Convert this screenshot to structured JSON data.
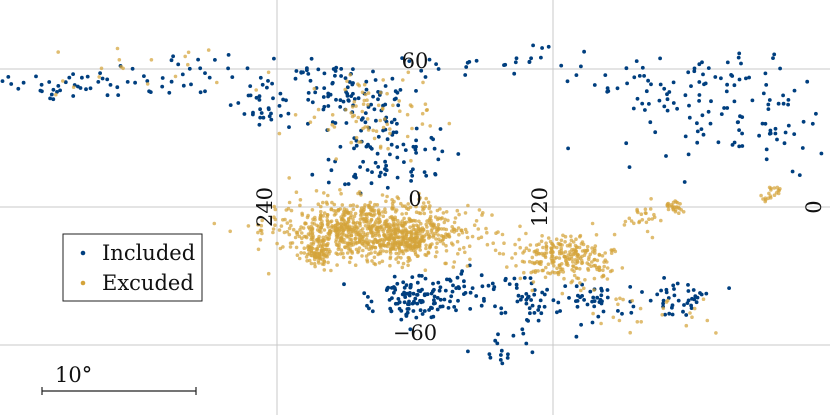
{
  "chart_data": {
    "type": "scatter",
    "projection": "sky map (longitude / latitude, degrees)",
    "grid": true,
    "longitude_ticks": [
      "240",
      "120",
      "0"
    ],
    "latitude_ticks": [
      "60",
      "0",
      "−60"
    ],
    "legend": {
      "placement": "left",
      "entries": [
        {
          "label": "Included",
          "color": "#003f7f"
        },
        {
          "label": "Excuded",
          "color": "#d4a33a"
        }
      ]
    },
    "scale_bar": {
      "label": "10°"
    },
    "series": [
      {
        "name": "Included",
        "color": "#003f7f",
        "clusters": [
          {
            "lon": 330,
            "lat": 53,
            "dlon": 40,
            "dlat": 6,
            "n": 45
          },
          {
            "lon": 265,
            "lat": 58,
            "dlon": 50,
            "dlat": 8,
            "n": 40
          },
          {
            "lon": 245,
            "lat": 43,
            "dlon": 14,
            "dlat": 10,
            "n": 30
          },
          {
            "lon": 208,
            "lat": 48,
            "dlon": 22,
            "dlat": 14,
            "n": 85
          },
          {
            "lon": 188,
            "lat": 28,
            "dlon": 18,
            "dlat": 10,
            "n": 45
          },
          {
            "lon": 196,
            "lat": 15,
            "dlon": 20,
            "dlat": 8,
            "n": 35
          },
          {
            "lon": 168,
            "lat": 63,
            "dlon": 25,
            "dlat": 6,
            "n": 14
          },
          {
            "lon": 125,
            "lat": 63,
            "dlon": 25,
            "dlat": 6,
            "n": 12
          },
          {
            "lon": 60,
            "lat": 57,
            "dlon": 40,
            "dlat": 9,
            "n": 55
          },
          {
            "lon": 38,
            "lat": 35,
            "dlon": 45,
            "dlat": 14,
            "n": 90
          },
          {
            "lon": 182,
            "lat": -40,
            "dlon": 16,
            "dlat": 8,
            "n": 110
          },
          {
            "lon": 155,
            "lat": -35,
            "dlon": 10,
            "dlat": 8,
            "n": 30
          },
          {
            "lon": 132,
            "lat": -40,
            "dlon": 10,
            "dlat": 10,
            "n": 45
          },
          {
            "lon": 143,
            "lat": -62,
            "dlon": 8,
            "dlat": 7,
            "n": 15
          },
          {
            "lon": 100,
            "lat": -42,
            "dlon": 12,
            "dlat": 8,
            "n": 40
          },
          {
            "lon": 65,
            "lat": -40,
            "dlon": 15,
            "dlat": 7,
            "n": 40
          }
        ]
      },
      {
        "name": "Excuded",
        "color": "#d4a33a",
        "clusters": [
          {
            "lon": 200,
            "lat": -10,
            "dlon": 35,
            "dlat": 11,
            "n": 900
          },
          {
            "lon": 222,
            "lat": -20,
            "dlon": 4,
            "dlat": 4,
            "n": 70
          },
          {
            "lon": 182,
            "lat": -15,
            "dlon": 10,
            "dlat": 5,
            "n": 140
          },
          {
            "lon": 115,
            "lat": -22,
            "dlon": 18,
            "dlat": 9,
            "n": 260
          },
          {
            "lon": 80,
            "lat": -5,
            "dlon": 10,
            "dlat": 6,
            "n": 25
          },
          {
            "lon": 68,
            "lat": 0,
            "dlon": 3,
            "dlat": 2,
            "n": 25
          },
          {
            "lon": 25,
            "lat": 7,
            "dlon": 4,
            "dlat": 3,
            "n": 20
          },
          {
            "lon": 200,
            "lat": 40,
            "dlon": 25,
            "dlat": 16,
            "n": 80
          },
          {
            "lon": 300,
            "lat": 60,
            "dlon": 55,
            "dlat": 10,
            "n": 20
          },
          {
            "lon": 80,
            "lat": -45,
            "dlon": 25,
            "dlat": 10,
            "n": 25
          }
        ]
      }
    ]
  }
}
